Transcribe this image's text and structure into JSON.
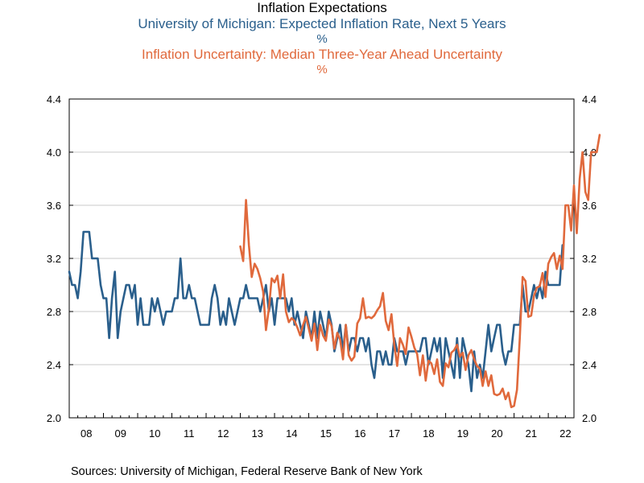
{
  "title": "Inflation Expectations",
  "sources": "Sources:  University of Michigan, Federal Reserve Bank of New York",
  "chart_data": {
    "type": "line",
    "title": "Inflation Expectations",
    "y_axis_left": {
      "ticks": [
        "2.0",
        "2.4",
        "2.8",
        "3.2",
        "3.6",
        "4.0",
        "4.4"
      ],
      "ylim": [
        2.0,
        4.4
      ]
    },
    "y_axis_right": {
      "ticks": [
        "2.0",
        "2.4",
        "2.8",
        "3.2",
        "3.6",
        "4.0",
        "4.4"
      ],
      "ylim": [
        2.0,
        4.4
      ]
    },
    "x_axis": {
      "labels": [
        "08",
        "09",
        "10",
        "11",
        "12",
        "13",
        "14",
        "15",
        "16",
        "17",
        "18",
        "19",
        "20",
        "21",
        "22"
      ],
      "xlim": [
        2008.0,
        2022.75
      ]
    },
    "grid": "horizontal",
    "series": [
      {
        "name": "University of Michigan: Expected Inflation Rate, Next 5 Years",
        "unit": "%",
        "color": "#2a5f8c",
        "x_start": 2008.0,
        "frequency": "monthly",
        "values": [
          3.1,
          3.0,
          3.0,
          2.9,
          3.1,
          3.4,
          3.4,
          3.4,
          3.2,
          3.2,
          3.2,
          3.0,
          2.9,
          2.9,
          2.6,
          2.9,
          3.1,
          2.6,
          2.8,
          2.9,
          3.0,
          3.0,
          2.9,
          3.0,
          2.7,
          2.9,
          2.7,
          2.7,
          2.7,
          2.9,
          2.8,
          2.9,
          2.8,
          2.7,
          2.8,
          2.8,
          2.8,
          2.9,
          2.9,
          3.2,
          2.9,
          2.9,
          3.0,
          2.9,
          2.9,
          2.8,
          2.7,
          2.7,
          2.7,
          2.7,
          2.9,
          3.0,
          2.9,
          2.7,
          2.8,
          2.7,
          2.9,
          2.8,
          2.7,
          2.8,
          2.9,
          2.9,
          3.0,
          2.9,
          2.9,
          2.9,
          2.9,
          2.8,
          2.9,
          3.0,
          2.8,
          2.9,
          2.7,
          2.9,
          2.9,
          2.9,
          2.9,
          2.8,
          2.9,
          2.7,
          2.8,
          2.7,
          2.6,
          2.8,
          2.7,
          2.6,
          2.8,
          2.6,
          2.8,
          2.7,
          2.6,
          2.8,
          2.7,
          2.5,
          2.6,
          2.7,
          2.5,
          2.7,
          2.5,
          2.6,
          2.6,
          2.5,
          2.6,
          2.6,
          2.5,
          2.6,
          2.4,
          2.3,
          2.5,
          2.5,
          2.4,
          2.5,
          2.4,
          2.4,
          2.6,
          2.5,
          2.5,
          2.5,
          2.4,
          2.5,
          2.5,
          2.5,
          2.5,
          2.5,
          2.6,
          2.6,
          2.4,
          2.5,
          2.6,
          2.5,
          2.6,
          2.3,
          2.6,
          2.5,
          2.4,
          2.3,
          2.6,
          2.3,
          2.6,
          2.5,
          2.4,
          2.2,
          2.5,
          2.3,
          2.4,
          2.3,
          2.5,
          2.7,
          2.5,
          2.6,
          2.7,
          2.7,
          2.5,
          2.4,
          2.5,
          2.5,
          2.7,
          2.7,
          2.7,
          3.0,
          2.8,
          2.8,
          2.9,
          3.0,
          2.9,
          3.0,
          2.9,
          3.1,
          3.0,
          3.0,
          3.0,
          3.0,
          3.0,
          3.3
        ]
      },
      {
        "name": "Inflation Uncertainty: Median Three-Year Ahead Uncertainty",
        "unit": "%",
        "color": "#e0693c",
        "x_start": 2013.0,
        "frequency": "monthly",
        "values": [
          3.29,
          3.18,
          3.64,
          3.3,
          3.06,
          3.16,
          3.12,
          3.05,
          2.95,
          2.66,
          2.82,
          3.05,
          3.02,
          3.07,
          2.9,
          3.08,
          2.8,
          2.72,
          2.75,
          2.73,
          2.68,
          2.62,
          2.7,
          2.76,
          2.67,
          2.58,
          2.71,
          2.51,
          2.7,
          2.62,
          2.58,
          2.74,
          2.69,
          2.52,
          2.64,
          2.59,
          2.44,
          2.7,
          2.47,
          2.43,
          2.46,
          2.71,
          2.75,
          2.9,
          2.75,
          2.76,
          2.75,
          2.77,
          2.81,
          2.84,
          2.94,
          2.73,
          2.66,
          2.78,
          2.55,
          2.39,
          2.6,
          2.55,
          2.48,
          2.68,
          2.61,
          2.53,
          2.48,
          2.32,
          2.47,
          2.28,
          2.43,
          2.41,
          2.33,
          2.44,
          2.27,
          2.24,
          2.41,
          2.38,
          2.49,
          2.51,
          2.55,
          2.46,
          2.49,
          2.36,
          2.47,
          2.51,
          2.44,
          2.39,
          2.37,
          2.24,
          2.35,
          2.24,
          2.32,
          2.18,
          2.17,
          2.18,
          2.22,
          2.14,
          2.19,
          2.08,
          2.09,
          2.21,
          2.6,
          3.06,
          3.03,
          2.76,
          2.77,
          2.92,
          2.98,
          2.99,
          3.09,
          2.91,
          3.16,
          3.21,
          3.24,
          3.12,
          3.22,
          3.12,
          3.6,
          3.6,
          3.41,
          3.75,
          3.39,
          3.8,
          4.0,
          3.7,
          3.64,
          4.0,
          4.0,
          4.0,
          4.13
        ]
      }
    ],
    "sources": "Sources:  University of Michigan, Federal Reserve Bank of New York"
  }
}
